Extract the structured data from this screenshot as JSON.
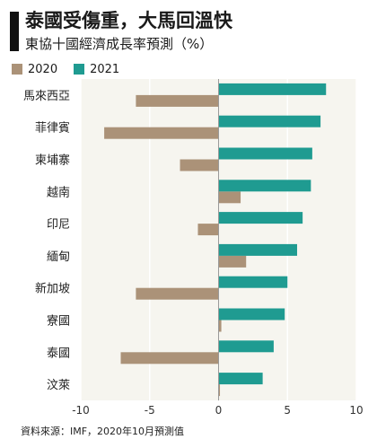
{
  "header": {
    "title": "泰國受傷重，大馬回溫快",
    "subtitle": "東協十國經濟成長率預測（%）"
  },
  "source": "資料來源：IMF，2020年10月預測值",
  "colors": {
    "series_2020": "#ab9278",
    "series_2021": "#1f9b91",
    "plot_background": "#f6f5ef",
    "grid": "#ffffff",
    "zero_line": "#9a9a9a"
  },
  "chart_data": {
    "type": "bar",
    "orientation": "horizontal",
    "categories": [
      "馬來西亞",
      "菲律賓",
      "柬埔寨",
      "越南",
      "印尼",
      "緬甸",
      "新加坡",
      "寮國",
      "泰國",
      "汶萊"
    ],
    "series": [
      {
        "name": "2020",
        "values": [
          -6.0,
          -8.3,
          -2.8,
          1.6,
          -1.5,
          2.0,
          -6.0,
          0.2,
          -7.1,
          0.1
        ]
      },
      {
        "name": "2021",
        "values": [
          7.8,
          7.4,
          6.8,
          6.7,
          6.1,
          5.7,
          5.0,
          4.8,
          4.0,
          3.2
        ]
      }
    ],
    "xlim": [
      -10,
      10
    ],
    "xticks": [
      "-10",
      "-5",
      "0",
      "5",
      "10"
    ],
    "xlabel": "",
    "ylabel": "",
    "grid": true,
    "legend": "top-left"
  }
}
